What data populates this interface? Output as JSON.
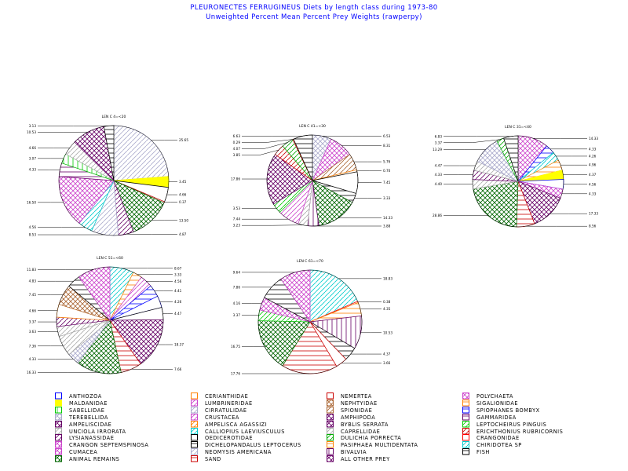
{
  "title": {
    "line1": "PLEURONECTES FERRUGINEUS Diets by length class during 1973-80",
    "line2": "Unweighted Percent Mean Percent Prey  Weights (rawperpy)"
  },
  "prey_categories": [
    {
      "name": "ANTHOZOA",
      "color": "#0000ff",
      "pattern": "empty"
    },
    {
      "name": "CERIANTHIDAE",
      "color": "#ff8000",
      "pattern": "empty"
    },
    {
      "name": "NEMERTEA",
      "color": "#cc0000",
      "pattern": "empty"
    },
    {
      "name": "POLYCHAETA",
      "color": "#cc44cc",
      "pattern": "cross"
    },
    {
      "name": "MALDANIDAE",
      "color": "#ffff00",
      "pattern": "solid"
    },
    {
      "name": "LUMBRINERIDAE",
      "color": "#cc44cc",
      "pattern": "diag"
    },
    {
      "name": "NEPHTYIDAE",
      "color": "#aa6633",
      "pattern": "cross"
    },
    {
      "name": "SIGALIONIDAE",
      "color": "#ff8000",
      "pattern": "horiz"
    },
    {
      "name": "SABELLIDAE",
      "color": "#00cc00",
      "pattern": "vert"
    },
    {
      "name": "CIRRATULIDAE",
      "color": "#aaaacc",
      "pattern": "diag"
    },
    {
      "name": "SPIONIDAE",
      "color": "#aa6633",
      "pattern": "diag"
    },
    {
      "name": "SPIOPHANES BOMBYX",
      "color": "#0000ff",
      "pattern": "horiz"
    },
    {
      "name": "TEREBELLIDA",
      "color": "#aaaacc",
      "pattern": "cross"
    },
    {
      "name": "CRUSTACEA",
      "color": "#cc44cc",
      "pattern": "diag"
    },
    {
      "name": "AMPHIPODA",
      "color": "#660066",
      "pattern": "cross"
    },
    {
      "name": "GAMMARIDEA",
      "color": "#660066",
      "pattern": "horiz"
    },
    {
      "name": "AMPELISCIDAE",
      "color": "#660066",
      "pattern": "cross"
    },
    {
      "name": "AMPELISCA AGASSIZI",
      "color": "#ff8000",
      "pattern": "diag"
    },
    {
      "name": "BYBLIS SERRATA",
      "color": "#660066",
      "pattern": "cross"
    },
    {
      "name": "LEPTOCHEIRUS PINGUIS",
      "color": "#00cc00",
      "pattern": "diag"
    },
    {
      "name": "UNCIOLA IRRORATA",
      "color": "#aaaaaa",
      "pattern": "diag"
    },
    {
      "name": "CALLIOPIUS LAEVIUSCULUS",
      "color": "#00cccc",
      "pattern": "diag"
    },
    {
      "name": "CAPRELLIDAE",
      "color": "#aaaaaa",
      "pattern": "diag"
    },
    {
      "name": "ERICHTHONIUS RUBRICORNIS",
      "color": "#cc0000",
      "pattern": "diag"
    },
    {
      "name": "LYSIANASSIDAE",
      "color": "#660066",
      "pattern": "diag"
    },
    {
      "name": "OEDICEROTIDAE",
      "color": "#000000",
      "pattern": "empty"
    },
    {
      "name": "DULICHIA PORRECTA",
      "color": "#00aa00",
      "pattern": "diag"
    },
    {
      "name": "CRANGONIDAE",
      "color": "#ff0000",
      "pattern": "empty"
    },
    {
      "name": "CRANGON SEPTEMSPINOSA",
      "color": "#cc44cc",
      "pattern": "cross"
    },
    {
      "name": "DICHELOPANDALUS LEPTOCERUS",
      "color": "#000000",
      "pattern": "horiz"
    },
    {
      "name": "PASIPHAEA MULTIDENTATA",
      "color": "#ff8000",
      "pattern": "horiz"
    },
    {
      "name": "CHIRIDOTEA SP",
      "color": "#00cccc",
      "pattern": "diag"
    },
    {
      "name": "CUMACEA",
      "color": "#cc44cc",
      "pattern": "cross"
    },
    {
      "name": "NEOMYSIS AMERICANA",
      "color": "#aaaacc",
      "pattern": "diag"
    },
    {
      "name": "BIVALVIA",
      "color": "#660066",
      "pattern": "vert"
    },
    {
      "name": "FISH",
      "color": "#000000",
      "pattern": "horiz"
    },
    {
      "name": "ANIMAL REMAINS",
      "color": "#006600",
      "pattern": "cross"
    },
    {
      "name": "SAND",
      "color": "#cc0000",
      "pattern": "horiz"
    },
    {
      "name": "ALL OTHER PREY",
      "color": "#660066",
      "pattern": "cross"
    }
  ],
  "chart_data": [
    {
      "type": "pie",
      "title": "LEN C 4=<20",
      "slices": [
        {
          "prey": "CIRRATULIDAE",
          "value": 25.65,
          "label": "25.65",
          "color": "#aaaacc",
          "pattern": "diag"
        },
        {
          "prey": "MALDANIDAE",
          "value": 3.45,
          "label": "3.45",
          "color": "#ffff00",
          "pattern": "solid"
        },
        {
          "prey": "OEDICEROTIDAE",
          "value": 4.66,
          "label": "4.66",
          "color": "#000000",
          "pattern": "empty"
        },
        {
          "prey": "NEMERTEA",
          "value": 0.37,
          "label": "0.37",
          "color": "#cc0000",
          "pattern": "empty"
        },
        {
          "prey": "ANIMAL REMAINS",
          "value": 13.5,
          "label": "13.50",
          "color": "#006600",
          "pattern": "cross"
        },
        {
          "prey": "LYSIANASSIDAE",
          "value": 4.87,
          "label": "4.87",
          "color": "#660066",
          "pattern": "diag"
        },
        {
          "prey": "NEOMYSIS AMERICANA",
          "value": 8.53,
          "label": "8.53",
          "color": "#aaaacc",
          "pattern": "diag"
        },
        {
          "prey": "CALLIOPIUS LAEVIUSCULUS",
          "value": 4.56,
          "label": "4.56",
          "color": "#00cccc",
          "pattern": "diag"
        },
        {
          "prey": "CRANGON SEPTEMSPINOSA",
          "value": 16.5,
          "label": "16.50",
          "color": "#cc44cc",
          "pattern": "cross"
        },
        {
          "prey": "GAMMARIDEA",
          "value": 4.33,
          "label": "4.33",
          "color": "#660066",
          "pattern": "horiz"
        },
        {
          "prey": "SABELLIDAE",
          "value": 3.07,
          "label": "3.07",
          "color": "#00cc00",
          "pattern": "vert"
        },
        {
          "prey": "UNCIOLA IRRORATA",
          "value": 4.66,
          "label": "4.66",
          "color": "#aaaaaa",
          "pattern": "diag"
        },
        {
          "prey": "AMPELISCIDAE",
          "value": 10.53,
          "label": "10.53",
          "color": "#660066",
          "pattern": "cross"
        },
        {
          "prey": "FISH",
          "value": 3.13,
          "label": "3.13",
          "color": "#000000",
          "pattern": "horiz"
        }
      ]
    },
    {
      "type": "pie",
      "title": "LEN C 41=<30",
      "slices": [
        {
          "prey": "TEREBELLIDA",
          "value": 6.53,
          "label": "6.53",
          "color": "#aaaacc",
          "pattern": "cross"
        },
        {
          "prey": "POLYCHAETA",
          "value": 8.31,
          "label": "8.31",
          "color": "#cc44cc",
          "pattern": "cross"
        },
        {
          "prey": "SPIONIDAE",
          "value": 5.76,
          "label": "5.76",
          "color": "#aa6633",
          "pattern": "diag"
        },
        {
          "prey": "CERIANTHIDAE",
          "value": 0.7,
          "label": "0.70",
          "color": "#ff8000",
          "pattern": "empty"
        },
        {
          "prey": "OEDICEROTIDAE",
          "value": 7.45,
          "label": "7.45",
          "color": "#000000",
          "pattern": "empty"
        },
        {
          "prey": "FISH",
          "value": 3.33,
          "label": "3.33",
          "color": "#000000",
          "pattern": "horiz"
        },
        {
          "prey": "ANIMAL REMAINS",
          "value": 14.33,
          "label": "14.33",
          "color": "#006600",
          "pattern": "cross"
        },
        {
          "prey": "BIVALVIA",
          "value": 3.88,
          "label": "3.88",
          "color": "#660066",
          "pattern": "vert"
        },
        {
          "prey": "CAPRELLIDAE",
          "value": 3.23,
          "label": "3.23",
          "color": "#aaaaaa",
          "pattern": "diag"
        },
        {
          "prey": "CRUSTACEA",
          "value": 7.44,
          "label": "7.44",
          "color": "#cc44cc",
          "pattern": "diag"
        },
        {
          "prey": "LEPTOCHEIRUS PINGUIS",
          "value": 3.53,
          "label": "3.53",
          "color": "#00cc00",
          "pattern": "diag"
        },
        {
          "prey": "AMPELISCIDAE",
          "value": 17.86,
          "label": "17.86",
          "color": "#660066",
          "pattern": "cross"
        },
        {
          "prey": "ERICHTHONIUS RUBRICORNIS",
          "value": 3.85,
          "label": "3.85",
          "color": "#cc0000",
          "pattern": "diag"
        },
        {
          "prey": "DULICHIA PORRECTA",
          "value": 4.07,
          "label": "4.07",
          "color": "#00aa00",
          "pattern": "diag"
        },
        {
          "prey": "NEMERTEA",
          "value": 0.29,
          "label": "0.29",
          "color": "#cc0000",
          "pattern": "empty"
        },
        {
          "prey": "DICHELOPANDALUS LEPTOCERUS",
          "value": 6.63,
          "label": "6.63",
          "color": "#000000",
          "pattern": "horiz"
        }
      ]
    },
    {
      "type": "pie",
      "title": "LEN C 31=<40",
      "slices": [
        {
          "prey": "CRANGON SEPTEMSPINOSA",
          "value": 14.33,
          "label": "14.33",
          "color": "#cc44cc",
          "pattern": "cross"
        },
        {
          "prey": "SPIOPHANES BOMBYX",
          "value": 4.33,
          "label": "4.33",
          "color": "#0000ff",
          "pattern": "horiz"
        },
        {
          "prey": "CALLIOPIUS LAEVIUSCULUS",
          "value": 4.26,
          "label": "4.26",
          "color": "#00cccc",
          "pattern": "diag"
        },
        {
          "prey": "SIGALIONIDAE",
          "value": 4.96,
          "label": "4.96",
          "color": "#ff8000",
          "pattern": "horiz"
        },
        {
          "prey": "MALDANIDAE",
          "value": 4.37,
          "label": "4.37",
          "color": "#ffff00",
          "pattern": "solid"
        },
        {
          "prey": "ANTHOZOA",
          "value": 4.56,
          "label": "4.56",
          "color": "#0000ff",
          "pattern": "empty"
        },
        {
          "prey": "CUMACEA",
          "value": 4.33,
          "label": "4.33",
          "color": "#cc44cc",
          "pattern": "cross"
        },
        {
          "prey": "ALL OTHER PREY",
          "value": 17.33,
          "label": "17.33",
          "color": "#660066",
          "pattern": "cross"
        },
        {
          "prey": "SAND",
          "value": 8.56,
          "label": "8.56",
          "color": "#cc0000",
          "pattern": "horiz"
        },
        {
          "prey": "ANIMAL REMAINS",
          "value": 28.86,
          "label": "28.86",
          "color": "#006600",
          "pattern": "cross"
        },
        {
          "prey": "UNCIOLA IRRORATA",
          "value": 4.4,
          "label": "4.40",
          "color": "#aaaaaa",
          "pattern": "diag"
        },
        {
          "prey": "LYSIANASSIDAE",
          "value": 4.33,
          "label": "4.33",
          "color": "#660066",
          "pattern": "diag"
        },
        {
          "prey": "CAPRELLIDAE",
          "value": 4.47,
          "label": "4.47",
          "color": "#aaaaaa",
          "pattern": "diag"
        },
        {
          "prey": "TEREBELLIDA",
          "value": 13.29,
          "label": "13.29",
          "color": "#aaaacc",
          "pattern": "cross"
        },
        {
          "prey": "DULICHIA PORRECTA",
          "value": 3.37,
          "label": "3.37",
          "color": "#00aa00",
          "pattern": "diag"
        },
        {
          "prey": "FISH",
          "value": 6.83,
          "label": "6.83",
          "color": "#000000",
          "pattern": "horiz"
        }
      ]
    },
    {
      "type": "pie",
      "title": "LEN C 51=<60",
      "slices": [
        {
          "prey": "CALLIOPIUS LAEVIUSCULUS",
          "value": 8.67,
          "label": "8.67",
          "color": "#00cccc",
          "pattern": "diag"
        },
        {
          "prey": "SIGALIONIDAE",
          "value": 3.33,
          "label": "3.33",
          "color": "#ff8000",
          "pattern": "horiz"
        },
        {
          "prey": "LUMBRINERIDAE",
          "value": 4.56,
          "label": "4.56",
          "color": "#cc44cc",
          "pattern": "diag"
        },
        {
          "prey": "SPIOPHANES BOMBYX",
          "value": 4.41,
          "label": "4.41",
          "color": "#0000ff",
          "pattern": "horiz"
        },
        {
          "prey": "ANTHOZOA",
          "value": 4.26,
          "label": "4.26",
          "color": "#0000ff",
          "pattern": "empty"
        },
        {
          "prey": "OEDICEROTIDAE",
          "value": 4.47,
          "label": "4.47",
          "color": "#000000",
          "pattern": "empty"
        },
        {
          "prey": "ALL OTHER PREY",
          "value": 18.37,
          "label": "18.37",
          "color": "#660066",
          "pattern": "cross"
        },
        {
          "prey": "SAND",
          "value": 7.66,
          "label": "7.66",
          "color": "#cc0000",
          "pattern": "horiz"
        },
        {
          "prey": "ANIMAL REMAINS",
          "value": 16.33,
          "label": "16.33",
          "color": "#006600",
          "pattern": "cross"
        },
        {
          "prey": "TEREBELLIDA",
          "value": 4.33,
          "label": "4.33",
          "color": "#aaaacc",
          "pattern": "cross"
        },
        {
          "prey": "UNCIOLA IRRORATA",
          "value": 7.36,
          "label": "7.36",
          "color": "#aaaaaa",
          "pattern": "diag"
        },
        {
          "prey": "CAPRELLIDAE",
          "value": 3.63,
          "label": "3.63",
          "color": "#aaaaaa",
          "pattern": "diag"
        },
        {
          "prey": "LYSIANASSIDAE",
          "value": 3.37,
          "label": "3.37",
          "color": "#660066",
          "pattern": "diag"
        },
        {
          "prey": "CERIANTHIDAE",
          "value": 4.66,
          "label": "4.66",
          "color": "#ff8000",
          "pattern": "empty"
        },
        {
          "prey": "NEPHTYIDAE",
          "value": 7.45,
          "label": "7.45",
          "color": "#aa6633",
          "pattern": "cross"
        },
        {
          "prey": "FISH",
          "value": 4.83,
          "label": "4.83",
          "color": "#000000",
          "pattern": "horiz"
        },
        {
          "prey": "CRANGON SEPTEMSPINOSA",
          "value": 11.83,
          "label": "11.83",
          "color": "#cc44cc",
          "pattern": "cross"
        }
      ]
    },
    {
      "type": "pie",
      "title": "LEN C 61=<70",
      "slices": [
        {
          "prey": "CHIRIDOTEA SP",
          "value": 18.83,
          "label": "18.83",
          "color": "#00cccc",
          "pattern": "diag"
        },
        {
          "prey": "CRANGONIDAE",
          "value": 0.38,
          "label": "0.38",
          "color": "#ff0000",
          "pattern": "empty"
        },
        {
          "prey": "PASIPHAEA MULTIDENTATA",
          "value": 4.35,
          "label": "4.35",
          "color": "#ff8000",
          "pattern": "horiz"
        },
        {
          "prey": "BIVALVIA",
          "value": 10.53,
          "label": "10.53",
          "color": "#660066",
          "pattern": "vert"
        },
        {
          "prey": "FISH",
          "value": 4.37,
          "label": "4.37",
          "color": "#000000",
          "pattern": "horiz"
        },
        {
          "prey": "NEMERTEA",
          "value": 3.66,
          "label": "3.66",
          "color": "#cc0000",
          "pattern": "empty"
        },
        {
          "prey": "SAND",
          "value": 17.76,
          "label": "17.76",
          "color": "#cc0000",
          "pattern": "horiz"
        },
        {
          "prey": "ANIMAL REMAINS",
          "value": 16.75,
          "label": "16.75",
          "color": "#006600",
          "pattern": "cross"
        },
        {
          "prey": "LEPTOCHEIRUS PINGUIS",
          "value": 3.37,
          "label": "3.37",
          "color": "#00cc00",
          "pattern": "diag"
        },
        {
          "prey": "CRANGON SEPTEMSPINOSA",
          "value": 4.16,
          "label": "4.16",
          "color": "#cc44cc",
          "pattern": "cross"
        },
        {
          "prey": "DICHELOPANDALUS LEPTOCERUS",
          "value": 7.86,
          "label": "7.86",
          "color": "#000000",
          "pattern": "horiz"
        },
        {
          "prey": "POLYCHAETA",
          "value": 9.64,
          "label": "9.64",
          "color": "#cc44cc",
          "pattern": "cross"
        }
      ]
    }
  ]
}
